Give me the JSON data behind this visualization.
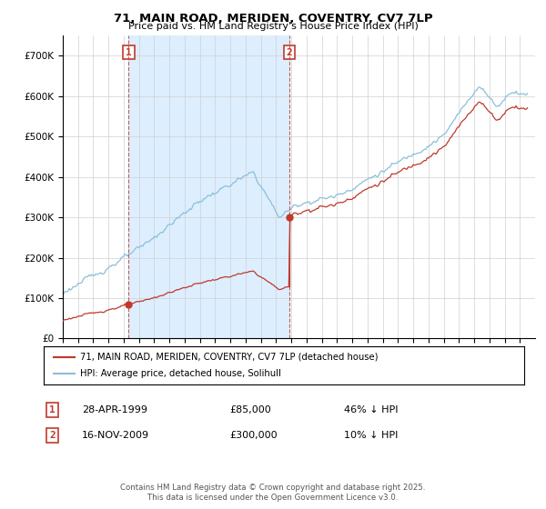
{
  "title": "71, MAIN ROAD, MERIDEN, COVENTRY, CV7 7LP",
  "subtitle": "Price paid vs. HM Land Registry's House Price Index (HPI)",
  "legend_line1": "71, MAIN ROAD, MERIDEN, COVENTRY, CV7 7LP (detached house)",
  "legend_line2": "HPI: Average price, detached house, Solihull",
  "annotation1_date": "28-APR-1999",
  "annotation1_price": "£85,000",
  "annotation1_hpi": "46% ↓ HPI",
  "annotation2_date": "16-NOV-2009",
  "annotation2_price": "£300,000",
  "annotation2_hpi": "10% ↓ HPI",
  "footer": "Contains HM Land Registry data © Crown copyright and database right 2025.\nThis data is licensed under the Open Government Licence v3.0.",
  "sale1_year": 1999.33,
  "sale1_price": 85000,
  "sale2_year": 2009.88,
  "sale2_price": 300000,
  "hpi_color": "#8bbfda",
  "sale_color": "#c0392b",
  "grid_color": "#d0d0d0",
  "shade_color": "#ddeeff",
  "background_color": "#ffffff",
  "ylim_max": 750000,
  "xmin": 1995,
  "xmax": 2026
}
